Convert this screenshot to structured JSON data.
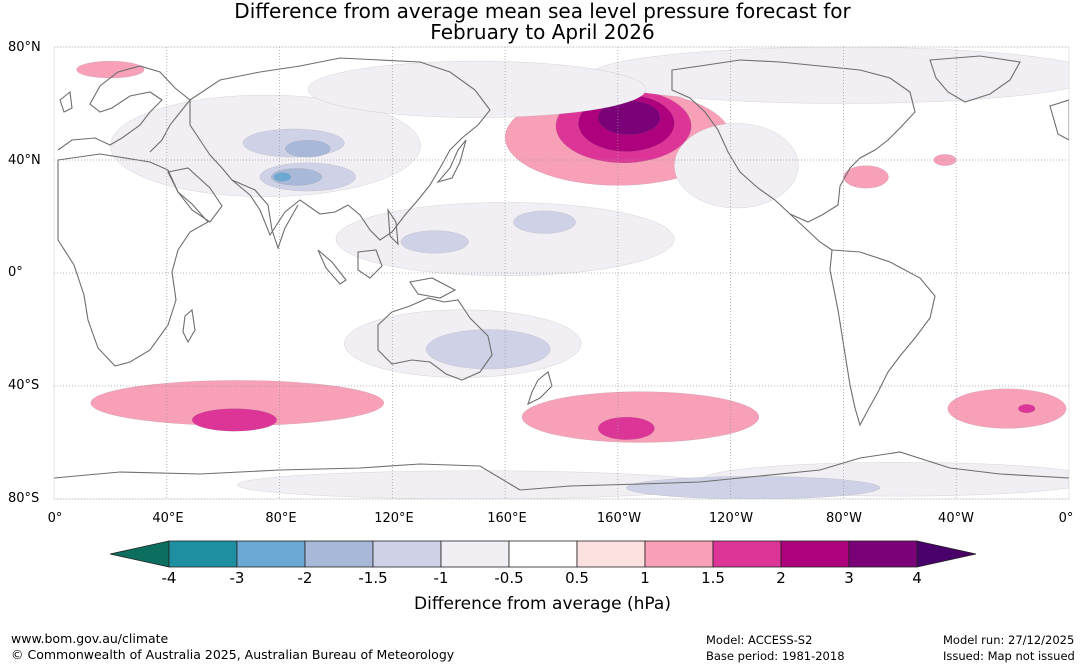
{
  "title": {
    "line1": "Difference from average mean sea level pressure forecast for",
    "line2": "February to April 2026"
  },
  "axes": {
    "lat_labels": [
      "80°N",
      "40°N",
      "0°",
      "40°S",
      "80°S"
    ],
    "lon_labels": [
      "0°",
      "40°E",
      "80°E",
      "120°E",
      "160°E",
      "160°W",
      "120°W",
      "80°W",
      "40°W",
      "0°"
    ]
  },
  "legend": {
    "label": "Difference from average (hPa)",
    "ticks": [
      "-4",
      "-3",
      "-2",
      "-1.5",
      "-1",
      "-0.5",
      "0.5",
      "1",
      "1.5",
      "2",
      "3",
      "4"
    ],
    "colors": [
      "#0b6e5f",
      "#1e8fa0",
      "#6aaad2",
      "#a8b8d8",
      "#cfd1e6",
      "#f1eef4",
      "#ffffff",
      "#fde0e0",
      "#f7a0b8",
      "#dd3497",
      "#ae017e",
      "#7a0177",
      "#49006a"
    ]
  },
  "footer": {
    "url": "www.bom.gov.au/climate",
    "copyright": "© Commonwealth of Australia 2025, Australian Bureau of Meteorology",
    "model": "Model: ACCESS-S2",
    "base_period": "Base period: 1981-2018",
    "model_run": "Model run: 27/12/2025",
    "issued": "Issued: Map not issued"
  },
  "anomaly_regions": [
    {
      "name": "north-pacific-high",
      "category": "1",
      "lon": -160,
      "lat": 48,
      "rx_deg": 40,
      "ry_deg": 17
    },
    {
      "name": "north-pacific-high",
      "category": "1.5",
      "lon": -158,
      "lat": 52,
      "rx_deg": 24,
      "ry_deg": 13
    },
    {
      "name": "north-pacific-high",
      "category": "2",
      "lon": -157,
      "lat": 53,
      "rx_deg": 17,
      "ry_deg": 10
    },
    {
      "name": "north-pacific-high",
      "category": "3",
      "lon": -156,
      "lat": 55,
      "rx_deg": 11,
      "ry_deg": 6
    },
    {
      "name": "central-asia-low",
      "category": "-0.5",
      "lon": 75,
      "lat": 45,
      "rx_deg": 55,
      "ry_deg": 18
    },
    {
      "name": "central-asia-low",
      "category": "-1",
      "lon": 85,
      "lat": 46,
      "rx_deg": 18,
      "ry_deg": 5
    },
    {
      "name": "central-asia-low",
      "category": "-1.5",
      "lon": 90,
      "lat": 44,
      "rx_deg": 8,
      "ry_deg": 3
    },
    {
      "name": "tibet-low",
      "category": "-1",
      "lon": 90,
      "lat": 34,
      "rx_deg": 17,
      "ry_deg": 5
    },
    {
      "name": "tibet-low",
      "category": "-1.5",
      "lon": 86,
      "lat": 34,
      "rx_deg": 9,
      "ry_deg": 3
    },
    {
      "name": "tibet-low",
      "category": "-2",
      "lon": 81,
      "lat": 34,
      "rx_deg": 3,
      "ry_deg": 1.5
    },
    {
      "name": "arctic",
      "category": "-0.5",
      "lon": -80,
      "lat": 70,
      "rx_deg": 90,
      "ry_deg": 10
    },
    {
      "name": "eurasia",
      "category": "-0.5",
      "lon": 150,
      "lat": 65,
      "rx_deg": 60,
      "ry_deg": 10
    },
    {
      "name": "europe",
      "category": "1",
      "lon": 20,
      "lat": 72,
      "rx_deg": 12,
      "ry_deg": 3
    },
    {
      "name": "north-atlantic",
      "category": "1",
      "lon": -72,
      "lat": 34,
      "rx_deg": 8,
      "ry_deg": 4
    },
    {
      "name": "north-atlantic",
      "category": "1",
      "lon": -44,
      "lat": 40,
      "rx_deg": 4,
      "ry_deg": 2
    },
    {
      "name": "north-america",
      "category": "-0.5",
      "lon": -118,
      "lat": 38,
      "rx_deg": 22,
      "ry_deg": 15
    },
    {
      "name": "tropical-pacific",
      "category": "-0.5",
      "lon": 160,
      "lat": 12,
      "rx_deg": 60,
      "ry_deg": 13
    },
    {
      "name": "tropical-pacific",
      "category": "-1",
      "lon": 135,
      "lat": 11,
      "rx_deg": 12,
      "ry_deg": 4
    },
    {
      "name": "tropical-pacific",
      "category": "-1",
      "lon": 174,
      "lat": 18,
      "rx_deg": 11,
      "ry_deg": 4
    },
    {
      "name": "australia",
      "category": "-0.5",
      "lon": 145,
      "lat": -25,
      "rx_deg": 42,
      "ry_deg": 12
    },
    {
      "name": "australia",
      "category": "-1",
      "lon": 154,
      "lat": -27,
      "rx_deg": 22,
      "ry_deg": 7
    },
    {
      "name": "southern-indian-ocean",
      "category": "1",
      "lon": 65,
      "lat": -46,
      "rx_deg": 52,
      "ry_deg": 8
    },
    {
      "name": "southern-indian-ocean",
      "category": "1.5",
      "lon": 64,
      "lat": -52,
      "rx_deg": 15,
      "ry_deg": 4
    },
    {
      "name": "south-pacific",
      "category": "1",
      "lon": -152,
      "lat": -51,
      "rx_deg": 42,
      "ry_deg": 9
    },
    {
      "name": "south-pacific",
      "category": "1.5",
      "lon": -157,
      "lat": -55,
      "rx_deg": 10,
      "ry_deg": 4
    },
    {
      "name": "south-atlantic",
      "category": "1",
      "lon": -22,
      "lat": -48,
      "rx_deg": 21,
      "ry_deg": 7
    },
    {
      "name": "south-atlantic",
      "category": "1.5",
      "lon": -15,
      "lat": -48,
      "rx_deg": 3,
      "ry_deg": 1.5
    },
    {
      "name": "antarctica",
      "category": "-0.5",
      "lon": 150,
      "lat": -75,
      "rx_deg": 85,
      "ry_deg": 5
    },
    {
      "name": "antarctica",
      "category": "-0.5",
      "lon": -60,
      "lat": -73,
      "rx_deg": 70,
      "ry_deg": 6
    },
    {
      "name": "antarctica",
      "category": "-1",
      "lon": -112,
      "lat": -76,
      "rx_deg": 45,
      "ry_deg": 4
    }
  ]
}
